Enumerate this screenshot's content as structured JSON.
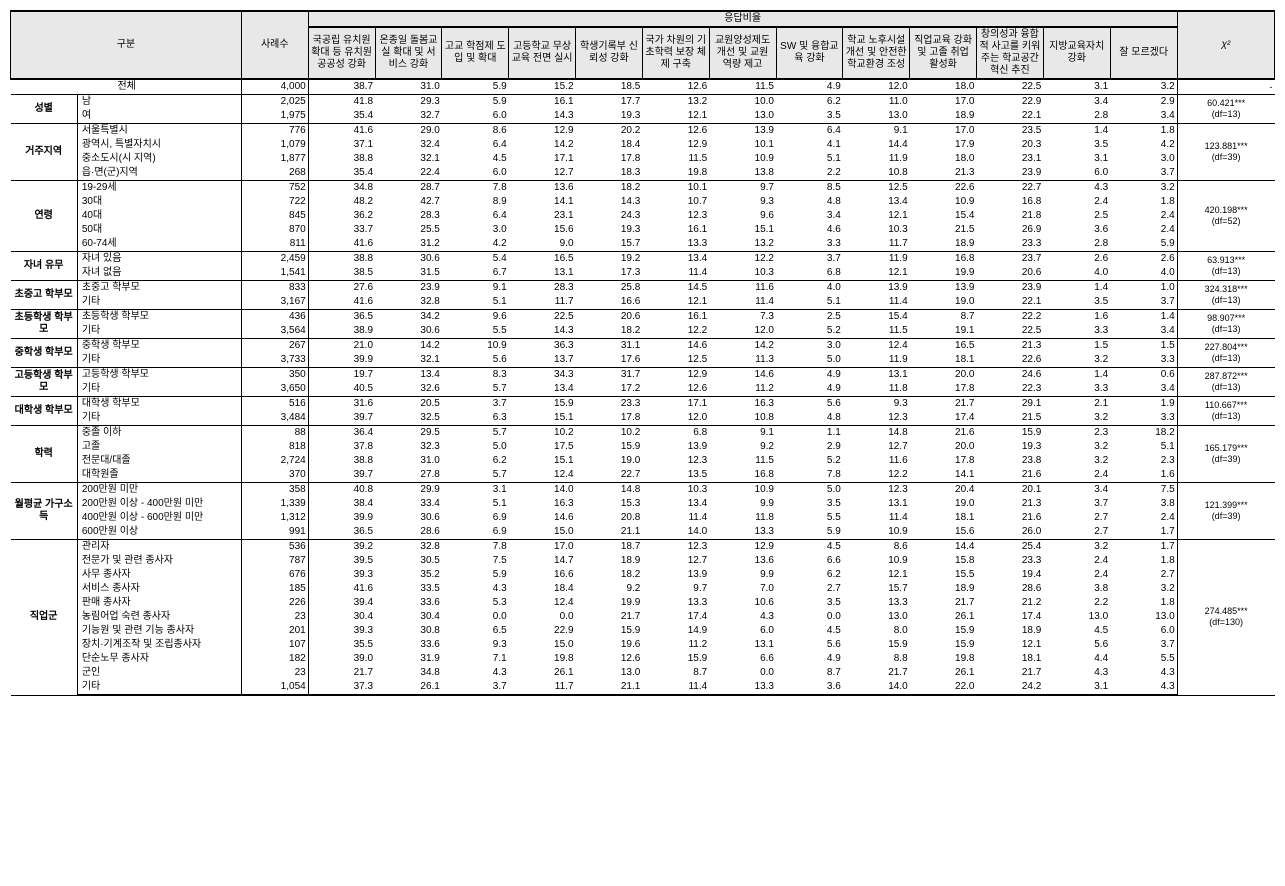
{
  "headers": {
    "gubun": "구분",
    "cases": "사례수",
    "response_rate": "응답비율",
    "chi2": "χ²",
    "cols": [
      "국공립 유치원 확대 등 유치원 공공성 강화",
      "온종일 돌봄교실 확대 및 서비스 강화",
      "고교 학점제 도입 및 확대",
      "고등학교 무상교육 전면 실시",
      "학생기록부 신뢰성 강화",
      "국가 차원의 기초학력 보장 체제 구축",
      "교원양성제도 개선 및 교원 역량 제고",
      "SW 및 융합교육 강화",
      "학교 노후시설 개선 및 안전한 학교환경 조성",
      "직업교육 강화 및 고졸 취업 활성화",
      "창의성과 융합적 사고를 키워주는 학교공간 혁신 추진",
      "지방교육자치 강화",
      "잘 모르겠다"
    ]
  },
  "total": {
    "label": "전체",
    "n": "4,000",
    "v": [
      "38.7",
      "31.0",
      "5.9",
      "15.2",
      "18.5",
      "12.6",
      "11.5",
      "4.9",
      "12.0",
      "18.0",
      "22.5",
      "3.1",
      "3.2"
    ],
    "chi": "-"
  },
  "groups": [
    {
      "cat": "성별",
      "chi": "60.421***",
      "df": "(df=13)",
      "rows": [
        {
          "label": "남",
          "n": "2,025",
          "v": [
            "41.8",
            "29.3",
            "5.9",
            "16.1",
            "17.7",
            "13.2",
            "10.0",
            "6.2",
            "11.0",
            "17.0",
            "22.9",
            "3.4",
            "2.9"
          ]
        },
        {
          "label": "여",
          "n": "1,975",
          "v": [
            "35.4",
            "32.7",
            "6.0",
            "14.3",
            "19.3",
            "12.1",
            "13.0",
            "3.5",
            "13.0",
            "18.9",
            "22.1",
            "2.8",
            "3.4"
          ]
        }
      ]
    },
    {
      "cat": "거주지역",
      "chi": "123.881***",
      "df": "(df=39)",
      "rows": [
        {
          "label": "서울특별시",
          "n": "776",
          "v": [
            "41.6",
            "29.0",
            "8.6",
            "12.9",
            "20.2",
            "12.6",
            "13.9",
            "6.4",
            "9.1",
            "17.0",
            "23.5",
            "1.4",
            "1.8"
          ]
        },
        {
          "label": "광역시, 특별자치시",
          "n": "1,079",
          "v": [
            "37.1",
            "32.4",
            "6.4",
            "14.2",
            "18.4",
            "12.9",
            "10.1",
            "4.1",
            "14.4",
            "17.9",
            "20.3",
            "3.5",
            "4.2"
          ]
        },
        {
          "label": "중소도시(시 지역)",
          "n": "1,877",
          "v": [
            "38.8",
            "32.1",
            "4.5",
            "17.1",
            "17.8",
            "11.5",
            "10.9",
            "5.1",
            "11.9",
            "18.0",
            "23.1",
            "3.1",
            "3.0"
          ]
        },
        {
          "label": "읍·면(군)지역",
          "n": "268",
          "v": [
            "35.4",
            "22.4",
            "6.0",
            "12.7",
            "18.3",
            "19.8",
            "13.8",
            "2.2",
            "10.8",
            "21.3",
            "23.9",
            "6.0",
            "3.7"
          ]
        }
      ]
    },
    {
      "cat": "연령",
      "chi": "420.198***",
      "df": "(df=52)",
      "rows": [
        {
          "label": "19-29세",
          "n": "752",
          "v": [
            "34.8",
            "28.7",
            "7.8",
            "13.6",
            "18.2",
            "10.1",
            "9.7",
            "8.5",
            "12.5",
            "22.6",
            "22.7",
            "4.3",
            "3.2"
          ]
        },
        {
          "label": "30대",
          "n": "722",
          "v": [
            "48.2",
            "42.7",
            "8.9",
            "14.1",
            "14.3",
            "10.7",
            "9.3",
            "4.8",
            "13.4",
            "10.9",
            "16.8",
            "2.4",
            "1.8"
          ]
        },
        {
          "label": "40대",
          "n": "845",
          "v": [
            "36.2",
            "28.3",
            "6.4",
            "23.1",
            "24.3",
            "12.3",
            "9.6",
            "3.4",
            "12.1",
            "15.4",
            "21.8",
            "2.5",
            "2.4"
          ]
        },
        {
          "label": "50대",
          "n": "870",
          "v": [
            "33.7",
            "25.5",
            "3.0",
            "15.6",
            "19.3",
            "16.1",
            "15.1",
            "4.6",
            "10.3",
            "21.5",
            "26.9",
            "3.6",
            "2.4"
          ]
        },
        {
          "label": "60-74세",
          "n": "811",
          "v": [
            "41.6",
            "31.2",
            "4.2",
            "9.0",
            "15.7",
            "13.3",
            "13.2",
            "3.3",
            "11.7",
            "18.9",
            "23.3",
            "2.8",
            "5.9"
          ]
        }
      ]
    },
    {
      "cat": "자녀 유무",
      "chi": "63.913***",
      "df": "(df=13)",
      "rows": [
        {
          "label": "자녀 있음",
          "n": "2,459",
          "v": [
            "38.8",
            "30.6",
            "5.4",
            "16.5",
            "19.2",
            "13.4",
            "12.2",
            "3.7",
            "11.9",
            "16.8",
            "23.7",
            "2.6",
            "2.6"
          ]
        },
        {
          "label": "자녀 없음",
          "n": "1,541",
          "v": [
            "38.5",
            "31.5",
            "6.7",
            "13.1",
            "17.3",
            "11.4",
            "10.3",
            "6.8",
            "12.1",
            "19.9",
            "20.6",
            "4.0",
            "4.0"
          ]
        }
      ]
    },
    {
      "cat": "초중고 학부모",
      "chi": "324.318***",
      "df": "(df=13)",
      "rows": [
        {
          "label": "초중고 학부모",
          "n": "833",
          "v": [
            "27.6",
            "23.9",
            "9.1",
            "28.3",
            "25.8",
            "14.5",
            "11.6",
            "4.0",
            "13.9",
            "13.9",
            "23.9",
            "1.4",
            "1.0"
          ]
        },
        {
          "label": "기타",
          "n": "3,167",
          "v": [
            "41.6",
            "32.8",
            "5.1",
            "11.7",
            "16.6",
            "12.1",
            "11.4",
            "5.1",
            "11.4",
            "19.0",
            "22.1",
            "3.5",
            "3.7"
          ]
        }
      ]
    },
    {
      "cat": "초등학생 학부모",
      "chi": "98.907***",
      "df": "(df=13)",
      "rows": [
        {
          "label": "초등학생 학부모",
          "n": "436",
          "v": [
            "36.5",
            "34.2",
            "9.6",
            "22.5",
            "20.6",
            "16.1",
            "7.3",
            "2.5",
            "15.4",
            "8.7",
            "22.2",
            "1.6",
            "1.4"
          ]
        },
        {
          "label": "기타",
          "n": "3,564",
          "v": [
            "38.9",
            "30.6",
            "5.5",
            "14.3",
            "18.2",
            "12.2",
            "12.0",
            "5.2",
            "11.5",
            "19.1",
            "22.5",
            "3.3",
            "3.4"
          ]
        }
      ]
    },
    {
      "cat": "중학생 학부모",
      "chi": "227.804***",
      "df": "(df=13)",
      "rows": [
        {
          "label": "중학생 학부모",
          "n": "267",
          "v": [
            "21.0",
            "14.2",
            "10.9",
            "36.3",
            "31.1",
            "14.6",
            "14.2",
            "3.0",
            "12.4",
            "16.5",
            "21.3",
            "1.5",
            "1.5"
          ]
        },
        {
          "label": "기타",
          "n": "3,733",
          "v": [
            "39.9",
            "32.1",
            "5.6",
            "13.7",
            "17.6",
            "12.5",
            "11.3",
            "5.0",
            "11.9",
            "18.1",
            "22.6",
            "3.2",
            "3.3"
          ]
        }
      ]
    },
    {
      "cat": "고등학생 학부모",
      "chi": "287.872***",
      "df": "(df=13)",
      "rows": [
        {
          "label": "고등학생 학부모",
          "n": "350",
          "v": [
            "19.7",
            "13.4",
            "8.3",
            "34.3",
            "31.7",
            "12.9",
            "14.6",
            "4.9",
            "13.1",
            "20.0",
            "24.6",
            "1.4",
            "0.6"
          ]
        },
        {
          "label": "기타",
          "n": "3,650",
          "v": [
            "40.5",
            "32.6",
            "5.7",
            "13.4",
            "17.2",
            "12.6",
            "11.2",
            "4.9",
            "11.8",
            "17.8",
            "22.3",
            "3.3",
            "3.4"
          ]
        }
      ]
    },
    {
      "cat": "대학생 학부모",
      "chi": "110.667***",
      "df": "(df=13)",
      "rows": [
        {
          "label": "대학생 학부모",
          "n": "516",
          "v": [
            "31.6",
            "20.5",
            "3.7",
            "15.9",
            "23.3",
            "17.1",
            "16.3",
            "5.6",
            "9.3",
            "21.7",
            "29.1",
            "2.1",
            "1.9"
          ]
        },
        {
          "label": "기타",
          "n": "3,484",
          "v": [
            "39.7",
            "32.5",
            "6.3",
            "15.1",
            "17.8",
            "12.0",
            "10.8",
            "4.8",
            "12.3",
            "17.4",
            "21.5",
            "3.2",
            "3.3"
          ]
        }
      ]
    },
    {
      "cat": "학력",
      "chi": "165.179***",
      "df": "(df=39)",
      "rows": [
        {
          "label": "중졸 이하",
          "n": "88",
          "v": [
            "36.4",
            "29.5",
            "5.7",
            "10.2",
            "10.2",
            "6.8",
            "9.1",
            "1.1",
            "14.8",
            "21.6",
            "15.9",
            "2.3",
            "18.2"
          ]
        },
        {
          "label": "고졸",
          "n": "818",
          "v": [
            "37.8",
            "32.3",
            "5.0",
            "17.5",
            "15.9",
            "13.9",
            "9.2",
            "2.9",
            "12.7",
            "20.0",
            "19.3",
            "3.2",
            "5.1"
          ]
        },
        {
          "label": "전문대/대졸",
          "n": "2,724",
          "v": [
            "38.8",
            "31.0",
            "6.2",
            "15.1",
            "19.0",
            "12.3",
            "11.5",
            "5.2",
            "11.6",
            "17.8",
            "23.8",
            "3.2",
            "2.3"
          ]
        },
        {
          "label": "대학원졸",
          "n": "370",
          "v": [
            "39.7",
            "27.8",
            "5.7",
            "12.4",
            "22.7",
            "13.5",
            "16.8",
            "7.8",
            "12.2",
            "14.1",
            "21.6",
            "2.4",
            "1.6"
          ]
        }
      ]
    },
    {
      "cat": "월평균 가구소득",
      "chi": "121.399***",
      "df": "(df=39)",
      "rows": [
        {
          "label": "200만원 미만",
          "n": "358",
          "v": [
            "40.8",
            "29.9",
            "3.1",
            "14.0",
            "14.8",
            "10.3",
            "10.9",
            "5.0",
            "12.3",
            "20.4",
            "20.1",
            "3.4",
            "7.5"
          ]
        },
        {
          "label": "200만원 이상 - 400만원 미만",
          "n": "1,339",
          "v": [
            "38.4",
            "33.4",
            "5.1",
            "16.3",
            "15.3",
            "13.4",
            "9.9",
            "3.5",
            "13.1",
            "19.0",
            "21.3",
            "3.7",
            "3.8"
          ]
        },
        {
          "label": "400만원 이상 - 600만원 미만",
          "n": "1,312",
          "v": [
            "39.9",
            "30.6",
            "6.9",
            "14.6",
            "20.8",
            "11.4",
            "11.8",
            "5.5",
            "11.4",
            "18.1",
            "21.6",
            "2.7",
            "2.4"
          ]
        },
        {
          "label": "600만원 이상",
          "n": "991",
          "v": [
            "36.5",
            "28.6",
            "6.9",
            "15.0",
            "21.1",
            "14.0",
            "13.3",
            "5.9",
            "10.9",
            "15.6",
            "26.0",
            "2.7",
            "1.7"
          ]
        }
      ]
    },
    {
      "cat": "직업군",
      "chi": "274.485***",
      "df": "(df=130)",
      "rows": [
        {
          "label": "관리자",
          "n": "536",
          "v": [
            "39.2",
            "32.8",
            "7.8",
            "17.0",
            "18.7",
            "12.3",
            "12.9",
            "4.5",
            "8.6",
            "14.4",
            "25.4",
            "3.2",
            "1.7"
          ]
        },
        {
          "label": "전문가 및 관련  종사자",
          "n": "787",
          "v": [
            "39.5",
            "30.5",
            "7.5",
            "14.7",
            "18.9",
            "12.7",
            "13.6",
            "6.6",
            "10.9",
            "15.8",
            "23.3",
            "2.4",
            "1.8"
          ]
        },
        {
          "label": "사무 종사자",
          "n": "676",
          "v": [
            "39.3",
            "35.2",
            "5.9",
            "16.6",
            "18.2",
            "13.9",
            "9.9",
            "6.2",
            "12.1",
            "15.5",
            "19.4",
            "2.4",
            "2.7"
          ]
        },
        {
          "label": "서비스 종사자",
          "n": "185",
          "v": [
            "41.6",
            "33.5",
            "4.3",
            "18.4",
            "9.2",
            "9.7",
            "7.0",
            "2.7",
            "15.7",
            "18.9",
            "28.6",
            "3.8",
            "3.2"
          ]
        },
        {
          "label": "판매 종사자",
          "n": "226",
          "v": [
            "39.4",
            "33.6",
            "5.3",
            "12.4",
            "19.9",
            "13.3",
            "10.6",
            "3.5",
            "13.3",
            "21.7",
            "21.2",
            "2.2",
            "1.8"
          ]
        },
        {
          "label": "농림어업 숙련 종사자",
          "n": "23",
          "v": [
            "30.4",
            "30.4",
            "0.0",
            "0.0",
            "21.7",
            "17.4",
            "4.3",
            "0.0",
            "13.0",
            "26.1",
            "17.4",
            "13.0",
            "13.0"
          ]
        },
        {
          "label": "기능원 및 관련 기능 종사자",
          "n": "201",
          "v": [
            "39.3",
            "30.8",
            "6.5",
            "22.9",
            "15.9",
            "14.9",
            "6.0",
            "4.5",
            "8.0",
            "15.9",
            "18.9",
            "4.5",
            "6.0"
          ]
        },
        {
          "label": "장치·기계조작 및 조립종사자",
          "n": "107",
          "v": [
            "35.5",
            "33.6",
            "9.3",
            "15.0",
            "19.6",
            "11.2",
            "13.1",
            "5.6",
            "15.9",
            "15.9",
            "12.1",
            "5.6",
            "3.7"
          ]
        },
        {
          "label": "단순노무 종사자",
          "n": "182",
          "v": [
            "39.0",
            "31.9",
            "7.1",
            "19.8",
            "12.6",
            "15.9",
            "6.6",
            "4.9",
            "8.8",
            "19.8",
            "18.1",
            "4.4",
            "5.5"
          ]
        },
        {
          "label": "군인",
          "n": "23",
          "v": [
            "21.7",
            "34.8",
            "4.3",
            "26.1",
            "13.0",
            "8.7",
            "0.0",
            "8.7",
            "21.7",
            "26.1",
            "21.7",
            "4.3",
            "4.3"
          ]
        },
        {
          "label": "기타",
          "n": "1,054",
          "v": [
            "37.3",
            "26.1",
            "3.7",
            "11.7",
            "21.1",
            "11.4",
            "13.3",
            "3.6",
            "14.0",
            "22.0",
            "24.2",
            "3.1",
            "4.3"
          ]
        }
      ]
    }
  ]
}
